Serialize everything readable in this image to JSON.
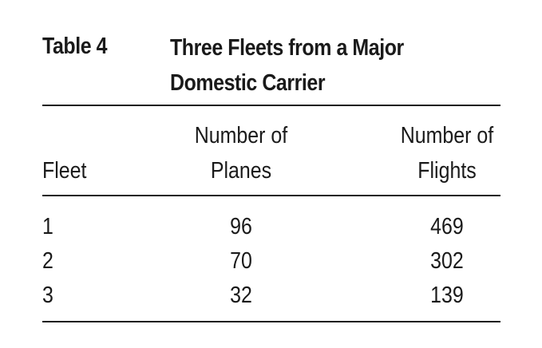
{
  "table": {
    "label": "Table 4",
    "title_line1": "Three Fleets from a Major",
    "title_line2": "Domestic Carrier",
    "headers": {
      "fleet": "Fleet",
      "planes_line1": "Number of",
      "planes_line2": "Planes",
      "flights_line1": "Number of",
      "flights_line2": "Flights"
    },
    "rows": [
      {
        "fleet": "1",
        "planes": "96",
        "flights": "469"
      },
      {
        "fleet": "2",
        "planes": "70",
        "flights": "302"
      },
      {
        "fleet": "3",
        "planes": "32",
        "flights": "139"
      }
    ]
  }
}
